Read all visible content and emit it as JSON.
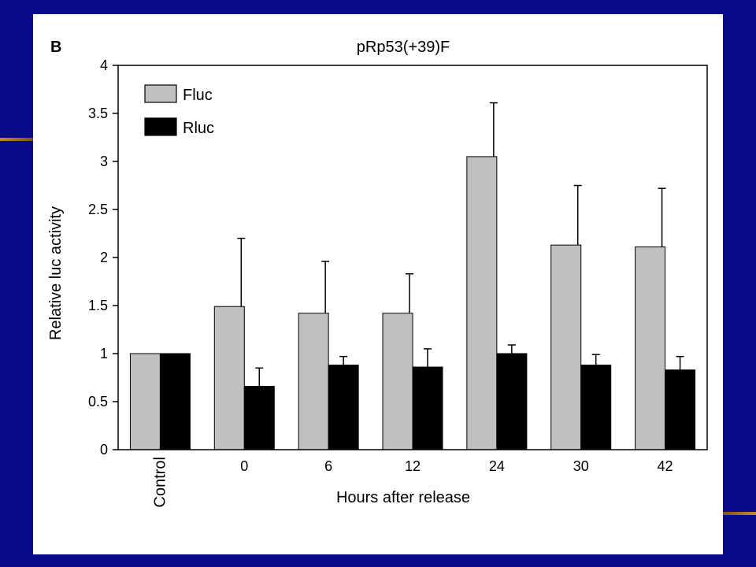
{
  "figure": {
    "panel_letter": "B"
  },
  "colors": {
    "slide_background": "#0b0b8a",
    "accent": "#c68a2e",
    "panel": "#ffffff",
    "fluc": "#c0c0c0",
    "rluc": "#000000"
  },
  "chart_data": {
    "type": "bar",
    "title": "pRp53(+39)F",
    "xlabel": "Hours after release",
    "ylabel": "Relative luc activity",
    "ylim": [
      0,
      4
    ],
    "yticks": [
      "0",
      "0.5",
      "1",
      "1.5",
      "2",
      "2.5",
      "3",
      "3.5",
      "4"
    ],
    "categories": [
      "Control",
      "0",
      "6",
      "12",
      "24",
      "30",
      "42"
    ],
    "series": [
      {
        "name": "Fluc",
        "color": "#c0c0c0",
        "values": [
          1.0,
          1.49,
          1.42,
          1.42,
          3.05,
          2.13,
          2.11
        ],
        "error": [
          0,
          0.71,
          0.54,
          0.41,
          0.56,
          0.62,
          0.61
        ]
      },
      {
        "name": "Rluc",
        "color": "#000000",
        "values": [
          1.0,
          0.66,
          0.88,
          0.86,
          1.0,
          0.88,
          0.83
        ],
        "error": [
          0,
          0.19,
          0.09,
          0.19,
          0.09,
          0.11,
          0.14
        ]
      }
    ],
    "legend_position": "top-left",
    "error_bars": "upper"
  }
}
